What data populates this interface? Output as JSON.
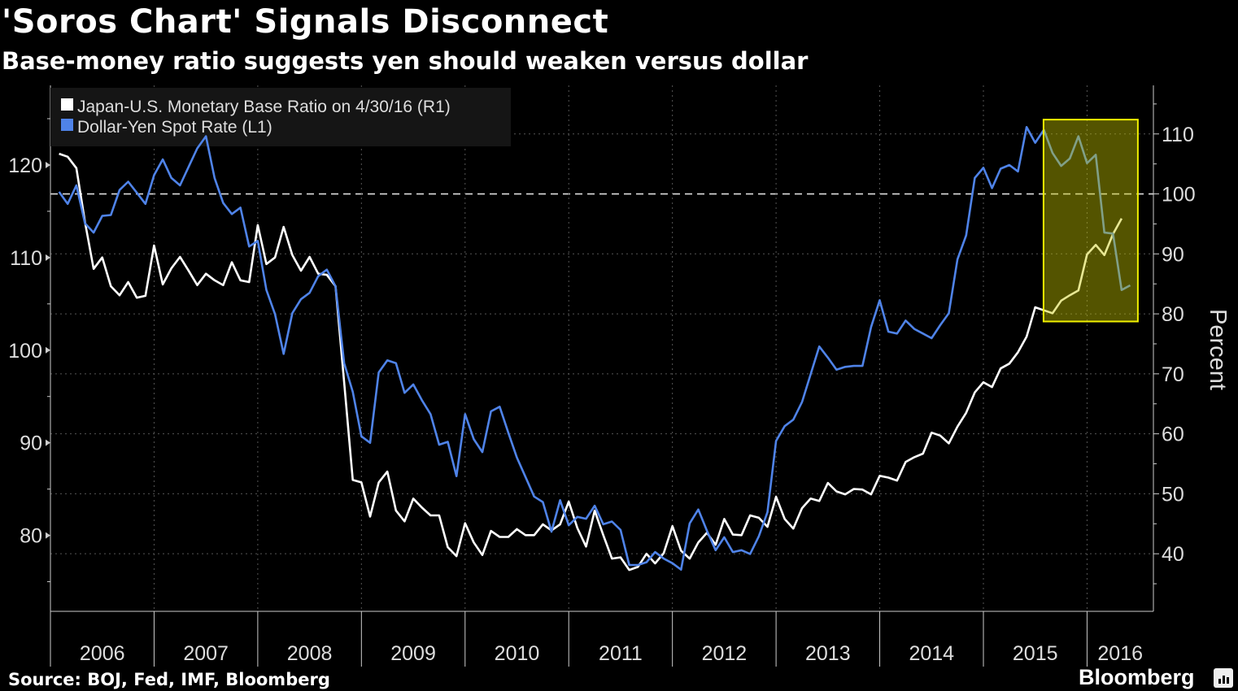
{
  "title": "'Soros Chart' Signals Disconnect",
  "subtitle": "Base-money ratio suggests yen should weaken versus dollar",
  "source": "Source: BOJ, Fed, IMF, Bloomberg",
  "brand": "Bloomberg",
  "colors": {
    "usdjpy": "#4f83e8",
    "ratio": "#ffffff",
    "highlight": "#ffff00",
    "grid": "#666666"
  },
  "chart_data": {
    "type": "line",
    "title": "'Soros Chart' Signals Disconnect",
    "subtitle": "Base-money ratio suggests yen should weaken versus dollar",
    "xlabel": "",
    "ylabel_left": "",
    "ylabel_right": "Percent",
    "x_start": 2006.0,
    "x_end": 2016.64,
    "x_ticks": [
      "2006",
      "2007",
      "2008",
      "2009",
      "2010",
      "2011",
      "2012",
      "2013",
      "2014",
      "2015",
      "2016"
    ],
    "ylim_left": [
      71.8,
      128.6
    ],
    "yticks_left": [
      80,
      90,
      100,
      110,
      120
    ],
    "ylim_right": [
      30.4,
      118.1
    ],
    "yticks_right": [
      40,
      50,
      60,
      70,
      80,
      90,
      100,
      110
    ],
    "reference_line_right": 100,
    "grid": true,
    "legend_placement": "top-left",
    "highlight_box": {
      "x": [
        2015.58,
        2016.49
      ],
      "y_left": [
        103.1,
        124.9
      ]
    },
    "series": [
      {
        "name": "Japan-U.S. Monetary Base Ratio on 4/30/16 (R1)",
        "axis": "right",
        "start": "2006-01",
        "step": "month",
        "values": [
          106.7,
          106.2,
          104.3,
          95.3,
          87.5,
          89.4,
          84.6,
          83.1,
          85.3,
          82.7,
          83.0,
          91.4,
          84.9,
          87.6,
          89.5,
          87.2,
          84.8,
          86.7,
          85.6,
          84.8,
          88.6,
          85.6,
          85.3,
          94.8,
          88.3,
          89.4,
          94.5,
          89.8,
          87.2,
          89.5,
          86.7,
          86.5,
          84.6,
          68.6,
          52.3,
          51.9,
          46.2,
          51.9,
          53.7,
          47.2,
          45.4,
          49.2,
          47.7,
          46.4,
          46.4,
          41.1,
          39.6,
          45.1,
          41.9,
          39.8,
          43.8,
          42.8,
          42.8,
          44.1,
          43.1,
          43.1,
          44.9,
          43.9,
          44.9,
          48.7,
          44.3,
          41.2,
          47.2,
          43.1,
          39.2,
          39.4,
          37.3,
          37.8,
          40.0,
          38.4,
          40.1,
          44.6,
          40.5,
          39.2,
          41.9,
          43.5,
          41.5,
          45.8,
          43.2,
          43.1,
          46.4,
          46.0,
          44.5,
          49.5,
          45.8,
          44.2,
          47.6,
          49.2,
          48.8,
          51.8,
          50.4,
          49.9,
          50.8,
          50.7,
          49.9,
          53.0,
          52.7,
          52.2,
          55.3,
          56.1,
          56.7,
          60.2,
          59.7,
          58.4,
          61.2,
          63.5,
          66.9,
          68.6,
          67.8,
          70.9,
          71.7,
          73.6,
          76.2,
          81.1,
          80.6,
          80.1,
          82.2,
          83.1,
          83.9,
          89.9,
          91.5,
          89.8,
          93.3,
          95.9
        ]
      },
      {
        "name": "Dollar-Yen Spot Rate (L1)",
        "axis": "left",
        "start": "2006-01",
        "step": "month",
        "values": [
          117.1,
          115.8,
          117.8,
          113.7,
          112.7,
          114.5,
          114.6,
          117.3,
          118.2,
          117.0,
          115.8,
          118.9,
          120.6,
          118.6,
          117.8,
          119.8,
          121.8,
          123.1,
          118.6,
          115.9,
          114.7,
          115.4,
          111.2,
          111.8,
          106.5,
          103.9,
          99.6,
          104.0,
          105.5,
          106.2,
          108.0,
          108.7,
          106.9,
          98.6,
          95.5,
          90.7,
          90.0,
          97.6,
          98.9,
          98.6,
          95.4,
          96.3,
          94.6,
          93.1,
          89.8,
          90.1,
          86.4,
          93.1,
          90.4,
          89.0,
          93.4,
          93.9,
          91.1,
          88.4,
          86.3,
          84.2,
          83.6,
          80.4,
          83.8,
          81.1,
          82.0,
          81.8,
          83.2,
          81.2,
          81.5,
          80.6,
          76.8,
          76.8,
          77.1,
          78.2,
          77.5,
          77.0,
          76.3,
          81.3,
          82.8,
          80.5,
          78.4,
          79.8,
          78.2,
          78.4,
          78.0,
          79.9,
          82.5,
          90.2,
          91.8,
          92.5,
          94.4,
          97.4,
          100.4,
          99.2,
          97.9,
          98.2,
          98.3,
          98.3,
          102.5,
          105.4,
          102.0,
          101.8,
          103.2,
          102.3,
          101.8,
          101.3,
          102.7,
          104.0,
          109.8,
          112.4,
          118.6,
          119.7,
          117.5,
          119.6,
          120.0,
          119.3,
          124.1,
          122.4,
          123.8,
          121.3,
          119.9,
          120.7,
          123.1,
          120.2,
          121.1,
          112.7,
          112.6,
          106.5,
          107.0
        ]
      }
    ]
  }
}
